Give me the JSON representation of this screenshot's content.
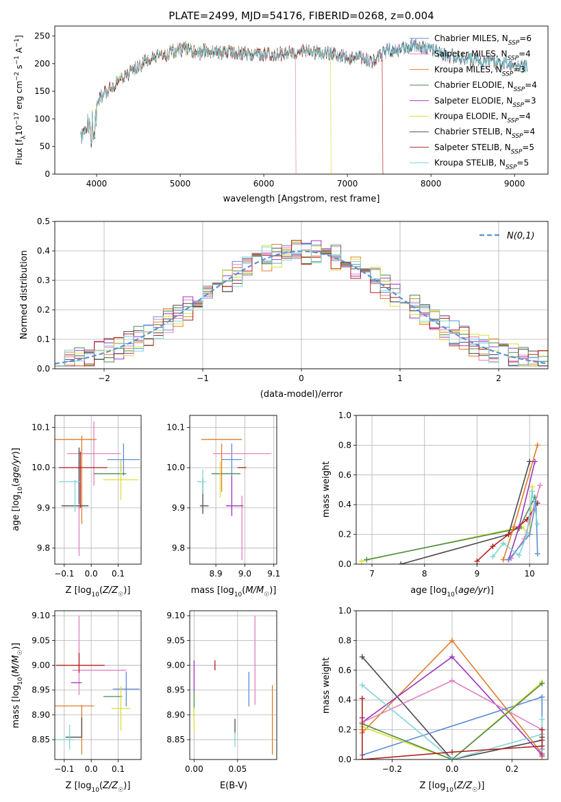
{
  "colors": {
    "Chabrier MILES": "#5b8bd6",
    "Salpeter MILES": "#e37fbd",
    "Kroupa MILES": "#e07b28",
    "Chabrier ELODIE": "#4c8a4c",
    "Salpeter ELODIE": "#9b34b8",
    "Kroupa ELODIE": "#dede2e",
    "Chabrier STELIB": "#4a4a4a",
    "Salpeter STELIB": "#b01f1f",
    "Kroupa STELIB": "#7fd3d8",
    "normal": "#5a8fd6"
  },
  "chart_data": [
    {
      "id": "spectrum",
      "type": "line",
      "title": "PLATE=2499, MJD=54176, FIBERID=0268, z=0.004",
      "xlabel": "wavelength [Angstrom, rest frame]",
      "ylabel": "Flux [f_λ 10^-17 erg cm^-2 s^-1 A^-1]",
      "xlim": [
        3500,
        9400
      ],
      "ylim": [
        0,
        268
      ],
      "xticks": [
        4000,
        5000,
        6000,
        7000,
        8000,
        9000
      ],
      "yticks": [
        0,
        50,
        100,
        150,
        200,
        250
      ],
      "grid": false,
      "legend": "upper right",
      "legend_entries": [
        {
          "model": "Chabrier MILES",
          "nssp": "6"
        },
        {
          "model": "Salpeter MILES",
          "nssp": "4"
        },
        {
          "model": "Kroupa MILES",
          "nssp": "3"
        },
        {
          "model": "Chabrier ELODIE",
          "nssp": "4"
        },
        {
          "model": "Salpeter ELODIE",
          "nssp": "3"
        },
        {
          "model": "Kroupa ELODIE",
          "nssp": "4"
        },
        {
          "model": "Chabrier STELIB",
          "nssp": "4"
        },
        {
          "model": "Salpeter STELIB",
          "nssp": "5"
        },
        {
          "model": "Kroupa STELIB",
          "nssp": "5"
        }
      ],
      "continuum": {
        "x": [
          3800,
          3850,
          3900,
          3950,
          4000,
          4100,
          4200,
          4300,
          4400,
          4500,
          4600,
          4700,
          4800,
          4900,
          5000,
          5100,
          5200,
          5300,
          5400,
          5500,
          5600,
          5700,
          5800,
          5900,
          6000,
          6100,
          6200,
          6300,
          6400,
          6500,
          6600,
          6700,
          6800,
          6900,
          7000,
          7100,
          7200,
          7300,
          7400,
          7500,
          7600,
          7700,
          7800,
          7900,
          8000,
          8200,
          8400,
          8600,
          8800,
          9000,
          9200
        ],
        "y": [
          95,
          85,
          100,
          110,
          130,
          150,
          160,
          175,
          185,
          195,
          205,
          210,
          215,
          220,
          225,
          228,
          215,
          225,
          222,
          220,
          222,
          220,
          218,
          218,
          215,
          218,
          218,
          220,
          222,
          225,
          220,
          220,
          218,
          215,
          210,
          212,
          208,
          205,
          215,
          225,
          222,
          230,
          235,
          230,
          225,
          215,
          208,
          205,
          202,
          198,
          195
        ]
      },
      "series_cutoffs": {
        "Salpeter STELIB": {
          "x": 7420,
          "y": 0
        },
        "Kroupa ELODIE": {
          "x": 6800,
          "y": 0
        },
        "Salpeter MILES": {
          "x": 6380,
          "y": 0
        }
      }
    },
    {
      "id": "residuals",
      "type": "step",
      "xlabel": "(data-model)/error",
      "ylabel": "Normed distribution",
      "xlim": [
        -2.5,
        2.5
      ],
      "ylim": [
        0,
        0.5
      ],
      "xticks": [
        -2,
        -1,
        0,
        1,
        2
      ],
      "yticks": [
        0.0,
        0.1,
        0.2,
        0.3,
        0.4,
        0.5
      ],
      "grid": true,
      "legend": "upper right",
      "normal_label": "N(0,1)"
    },
    {
      "id": "age-z",
      "type": "errorbar",
      "xlabel": "Z [log10(Z/Z☉)]",
      "ylabel": "age  [log10(age/yr)]",
      "xlim": [
        -0.135,
        0.185
      ],
      "ylim": [
        9.76,
        10.13
      ],
      "xticks": [
        -0.1,
        0.0,
        0.1
      ],
      "yticks": [
        9.8,
        9.9,
        10.0,
        10.1
      ],
      "grid": true,
      "points": [
        {
          "model": "Chabrier MILES",
          "x": 0.12,
          "y": 10.02,
          "xerr": 0.06,
          "yerr": 0.04
        },
        {
          "model": "Salpeter MILES",
          "x": 0.01,
          "y": 10.035,
          "xerr": 0.1,
          "yerr": 0.08
        },
        {
          "model": "Salpeter MILES",
          "x": -0.045,
          "y": 9.9,
          "xerr": 0.005,
          "yerr": 0.12
        },
        {
          "model": "Kroupa MILES",
          "x": -0.07,
          "y": 10.07,
          "xerr": 0.09,
          "yerr": 0.0
        },
        {
          "model": "Kroupa MILES",
          "x": -0.035,
          "y": 9.97,
          "xerr": 0.0,
          "yerr": 0.11
        },
        {
          "model": "Chabrier ELODIE",
          "x": 0.07,
          "y": 9.985,
          "xerr": 0.06,
          "yerr": 0.0
        },
        {
          "model": "Salpeter ELODIE",
          "x": 0.11,
          "y": 10.005,
          "xerr": 0.0,
          "yerr": 0.015
        },
        {
          "model": "Kroupa ELODIE",
          "x": 0.11,
          "y": 9.97,
          "xerr": 0.065,
          "yerr": 0.05
        },
        {
          "model": "Chabrier STELIB",
          "x": -0.06,
          "y": 9.905,
          "xerr": 0.05,
          "yerr": 0.0
        },
        {
          "model": "Chabrier STELIB",
          "x": -0.045,
          "y": 9.98,
          "xerr": 0.0,
          "yerr": 0.07
        },
        {
          "model": "Salpeter STELIB",
          "x": -0.03,
          "y": 10.0,
          "xerr": 0.09,
          "yerr": 0.0
        },
        {
          "model": "Salpeter STELIB",
          "x": -0.04,
          "y": 9.97,
          "xerr": 0.0,
          "yerr": 0.07
        },
        {
          "model": "Kroupa STELIB",
          "x": -0.08,
          "y": 9.965,
          "xerr": 0.04,
          "yerr": 0.0
        },
        {
          "model": "Kroupa STELIB",
          "x": -0.06,
          "y": 9.93,
          "xerr": 0.0,
          "yerr": 0.04
        }
      ]
    },
    {
      "id": "age-mass",
      "type": "errorbar",
      "xlabel": "mass [log10(M/M☉)]",
      "ylabel": "",
      "xlim": [
        8.81,
        9.11
      ],
      "ylim": [
        9.76,
        10.13
      ],
      "xticks": [
        8.9,
        9.0,
        9.1
      ],
      "yticks": [
        9.8,
        9.9,
        10.0,
        10.1
      ],
      "grid": true,
      "points": [
        {
          "model": "Chabrier MILES",
          "x": 8.955,
          "y": 10.02,
          "xerr": 0.035,
          "yerr": 0.04
        },
        {
          "model": "Salpeter MILES",
          "x": 8.99,
          "y": 10.035,
          "xerr": 0.1,
          "yerr": 0.0
        },
        {
          "model": "Salpeter MILES",
          "x": 8.99,
          "y": 9.85,
          "xerr": 0.0,
          "yerr": 0.08
        },
        {
          "model": "Kroupa MILES",
          "x": 8.92,
          "y": 10.07,
          "xerr": 0.07,
          "yerr": 0.0
        },
        {
          "model": "Kroupa MILES",
          "x": 8.92,
          "y": 10.0,
          "xerr": 0.0,
          "yerr": 0.06
        },
        {
          "model": "Chabrier ELODIE",
          "x": 8.935,
          "y": 9.985,
          "xerr": 0.05,
          "yerr": 0.0
        },
        {
          "model": "Salpeter ELODIE",
          "x": 8.965,
          "y": 9.905,
          "xerr": 0.03,
          "yerr": 0.0
        },
        {
          "model": "Salpeter ELODIE",
          "x": 8.955,
          "y": 9.93,
          "xerr": 0.0,
          "yerr": 0.05
        },
        {
          "model": "Kroupa ELODIE",
          "x": 8.915,
          "y": 9.97,
          "xerr": 0.0,
          "yerr": 0.045
        },
        {
          "model": "Chabrier STELIB",
          "x": 8.86,
          "y": 9.905,
          "xerr": 0.015,
          "yerr": 0.0
        },
        {
          "model": "Chabrier STELIB",
          "x": 8.855,
          "y": 9.93,
          "xerr": 0.0,
          "yerr": 0.045
        },
        {
          "model": "Salpeter STELIB",
          "x": 8.99,
          "y": 10.0,
          "xerr": 0.015,
          "yerr": 0.0
        },
        {
          "model": "Kroupa STELIB",
          "x": 8.85,
          "y": 9.965,
          "xerr": 0.015,
          "yerr": 0.0
        },
        {
          "model": "Kroupa STELIB",
          "x": 8.855,
          "y": 9.965,
          "xerr": 0.0,
          "yerr": 0.03
        }
      ]
    },
    {
      "id": "weight-age",
      "type": "line",
      "xlabel": "age  [log10(age/yr)]",
      "ylabel": "mass weight",
      "xlim": [
        6.7,
        10.35
      ],
      "ylim": [
        0.0,
        1.0
      ],
      "xticks": [
        7,
        8,
        9,
        10
      ],
      "yticks": [
        0.0,
        0.2,
        0.4,
        0.6,
        0.8,
        1.0
      ],
      "grid": true,
      "series": [
        {
          "model": "Kroupa ELODIE",
          "x": [
            6.8,
            9.85,
            10.0,
            10.05
          ],
          "y": [
            0.02,
            0.25,
            0.2,
            0.52
          ]
        },
        {
          "model": "Chabrier ELODIE",
          "x": [
            6.9,
            9.8,
            10.1
          ],
          "y": [
            0.03,
            0.24,
            0.45
          ]
        },
        {
          "model": "Chabrier STELIB",
          "x": [
            7.55,
            9.6,
            10.0
          ],
          "y": [
            0.0,
            0.2,
            0.69
          ]
        },
        {
          "model": "Salpeter STELIB",
          "x": [
            9.0,
            9.3,
            9.6,
            9.95,
            10.15
          ],
          "y": [
            0.02,
            0.12,
            0.2,
            0.3,
            0.41
          ]
        },
        {
          "model": "Kroupa MILES",
          "x": [
            9.5,
            9.7,
            10.15
          ],
          "y": [
            0.03,
            0.25,
            0.8
          ]
        },
        {
          "model": "Salpeter ELODIE",
          "x": [
            9.6,
            9.8,
            10.1
          ],
          "y": [
            0.03,
            0.25,
            0.69
          ]
        },
        {
          "model": "Salpeter MILES",
          "x": [
            9.65,
            9.9,
            10.2
          ],
          "y": [
            0.04,
            0.17,
            0.53
          ]
        },
        {
          "model": "Chabrier MILES",
          "x": [
            9.6,
            10.0,
            10.12,
            10.15
          ],
          "y": [
            0.03,
            0.2,
            0.42,
            0.07
          ]
        },
        {
          "model": "Kroupa STELIB",
          "x": [
            9.3,
            9.5,
            9.8,
            9.95,
            10.05,
            10.15
          ],
          "y": [
            0.05,
            0.14,
            0.06,
            0.2,
            0.49,
            0.27
          ]
        }
      ]
    },
    {
      "id": "mass-z",
      "type": "errorbar",
      "xlabel": "Z [log10(Z/Z☉)]",
      "ylabel": "mass [log10(M/M☉)]",
      "xlim": [
        -0.135,
        0.185
      ],
      "ylim": [
        8.81,
        9.11
      ],
      "xticks": [
        -0.1,
        0.0,
        0.1
      ],
      "yticks": [
        8.85,
        8.9,
        8.95,
        9.0,
        9.05,
        9.1
      ],
      "grid": true,
      "points": [
        {
          "model": "Chabrier MILES",
          "x": 0.13,
          "y": 8.952,
          "xerr": 0.05,
          "yerr": 0.035
        },
        {
          "model": "Salpeter MILES",
          "x": 0.03,
          "y": 8.99,
          "xerr": 0.1,
          "yerr": 0.0
        },
        {
          "model": "Salpeter MILES",
          "x": -0.045,
          "y": 9.02,
          "xerr": 0.0,
          "yerr": 0.08
        },
        {
          "model": "Kroupa MILES",
          "x": -0.07,
          "y": 8.918,
          "xerr": 0.08,
          "yerr": 0.0
        },
        {
          "model": "Kroupa MILES",
          "x": -0.035,
          "y": 8.87,
          "xerr": 0.0,
          "yerr": 0.05
        },
        {
          "model": "Chabrier ELODIE",
          "x": 0.08,
          "y": 8.937,
          "xerr": 0.035,
          "yerr": 0.0
        },
        {
          "model": "Salpeter ELODIE",
          "x": -0.055,
          "y": 8.965,
          "xerr": 0.02,
          "yerr": 0.0
        },
        {
          "model": "Kroupa ELODIE",
          "x": 0.11,
          "y": 8.913,
          "xerr": 0.035,
          "yerr": 0.045
        },
        {
          "model": "Chabrier STELIB",
          "x": -0.065,
          "y": 8.855,
          "xerr": 0.03,
          "yerr": 0.0
        },
        {
          "model": "Chabrier STELIB",
          "x": -0.035,
          "y": 8.875,
          "xerr": 0.0,
          "yerr": 0.02
        },
        {
          "model": "Salpeter STELIB",
          "x": -0.04,
          "y": 9.0,
          "xerr": 0.09,
          "yerr": 0.0
        },
        {
          "model": "Salpeter STELIB",
          "x": -0.045,
          "y": 9.005,
          "xerr": 0.0,
          "yerr": 0.02
        },
        {
          "model": "Kroupa STELIB",
          "x": -0.1,
          "y": 8.85,
          "xerr": 0.035,
          "yerr": 0.0
        },
        {
          "model": "Kroupa STELIB",
          "x": -0.08,
          "y": 8.855,
          "xerr": 0.0,
          "yerr": 0.025
        }
      ]
    },
    {
      "id": "mass-ebv",
      "type": "errorbar",
      "xlabel": "E(B-V)",
      "ylabel": "",
      "xlim": [
        -0.005,
        0.095
      ],
      "ylim": [
        8.81,
        9.11
      ],
      "xticks": [
        0.0,
        0.05
      ],
      "yticks": [
        8.85,
        8.9,
        8.95,
        9.0,
        9.05,
        9.1
      ],
      "grid": true,
      "points": [
        {
          "model": "Chabrier MILES",
          "x": 0.063,
          "y": 8.952,
          "xerr": 0.0,
          "yerr": 0.035
        },
        {
          "model": "Salpeter MILES",
          "x": 0.07,
          "y": 9.01,
          "xerr": 0.0,
          "yerr": 0.09
        },
        {
          "model": "Kroupa MILES",
          "x": 0.09,
          "y": 8.89,
          "xerr": 0.0,
          "yerr": 0.07
        },
        {
          "model": "Chabrier ELODIE",
          "x": 0.0,
          "y": 8.925,
          "xerr": 0.0,
          "yerr": 0.03
        },
        {
          "model": "Salpeter ELODIE",
          "x": 0.0,
          "y": 8.98,
          "xerr": 0.0,
          "yerr": 0.03
        },
        {
          "model": "Kroupa ELODIE",
          "x": 0.0,
          "y": 8.89,
          "xerr": 0.0,
          "yerr": 0.025
        },
        {
          "model": "Chabrier STELIB",
          "x": 0.047,
          "y": 8.877,
          "xerr": 0.0,
          "yerr": 0.015
        },
        {
          "model": "Salpeter STELIB",
          "x": 0.024,
          "y": 9.0,
          "xerr": 0.0,
          "yerr": 0.01
        },
        {
          "model": "Kroupa STELIB",
          "x": 0.047,
          "y": 8.85,
          "xerr": 0.0,
          "yerr": 0.015
        }
      ]
    },
    {
      "id": "weight-z",
      "type": "line",
      "xlabel": "Z [log10(Z/Z☉)]",
      "ylabel": "mass weight",
      "xlim": [
        -0.32,
        0.32
      ],
      "ylim": [
        0.0,
        1.0
      ],
      "xticks": [
        -0.2,
        0.0,
        0.2
      ],
      "yticks": [
        0.0,
        0.2,
        0.4,
        0.6,
        0.8,
        1.0
      ],
      "grid": true,
      "series": [
        {
          "model": "Chabrier STELIB",
          "x": [
            -0.3,
            0.0,
            0.3,
            0.3
          ],
          "y": [
            0.69,
            0.0,
            0.13,
            0.15
          ]
        },
        {
          "model": "Kroupa MILES",
          "x": [
            -0.3,
            -0.3,
            0.0,
            0.3,
            0.3
          ],
          "y": [
            0.2,
            0.18,
            0.8,
            0.04,
            0.02
          ]
        },
        {
          "model": "Salpeter ELODIE",
          "x": [
            -0.3,
            -0.3,
            0.0,
            0.3
          ],
          "y": [
            0.28,
            0.25,
            0.69,
            0.03
          ]
        },
        {
          "model": "Salpeter MILES",
          "x": [
            -0.3,
            0.0,
            0.3
          ],
          "y": [
            0.25,
            0.53,
            0.2
          ]
        },
        {
          "model": "Chabrier MILES",
          "x": [
            -0.3,
            0.3,
            0.3
          ],
          "y": [
            0.03,
            0.42,
            0.07
          ]
        },
        {
          "model": "Kroupa ELODIE",
          "x": [
            -0.3,
            0.0,
            0.3
          ],
          "y": [
            0.22,
            0.0,
            0.52
          ]
        },
        {
          "model": "Chabrier ELODIE",
          "x": [
            -0.3,
            0.0,
            0.3
          ],
          "y": [
            0.24,
            0.0,
            0.51
          ]
        },
        {
          "model": "Kroupa STELIB",
          "x": [
            -0.3,
            0.0,
            0.3,
            0.3
          ],
          "y": [
            0.5,
            0.0,
            0.17,
            0.27
          ]
        },
        {
          "model": "Salpeter STELIB",
          "x": [
            -0.3,
            -0.3,
            0.0,
            0.3,
            0.3
          ],
          "y": [
            0.41,
            0.0,
            0.05,
            0.09,
            0.2
          ]
        }
      ]
    }
  ]
}
